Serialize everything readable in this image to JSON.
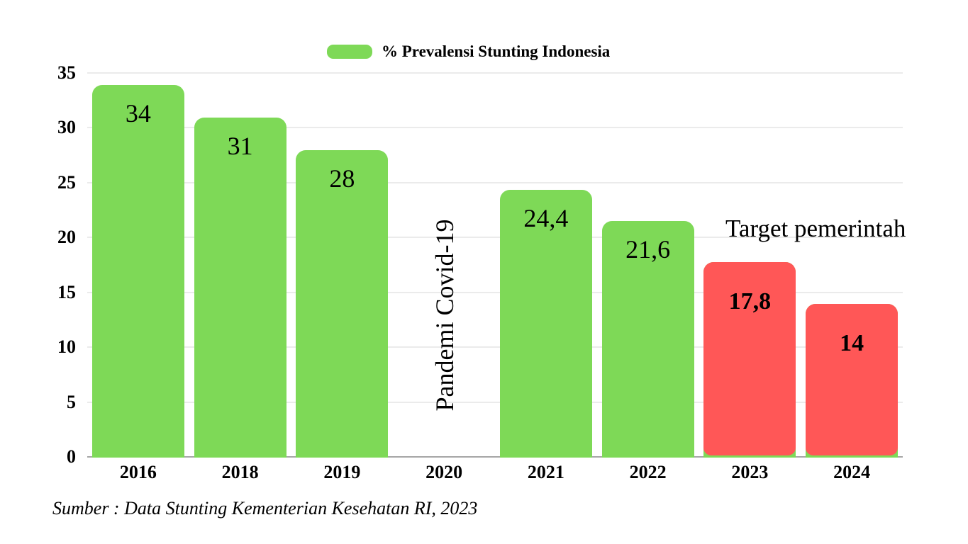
{
  "legend": {
    "label": "% Prevalensi Stunting Indonesia"
  },
  "annotations": {
    "covid": "Pandemi Covid-19",
    "target": "Target pemerintah"
  },
  "source": "Sumber : Data Stunting Kementerian Kesehatan RI, 2023",
  "colors": {
    "green": "#7ED957",
    "red": "#FF5757",
    "gridline": "#ebebeb",
    "axis_line": "#a6a6a6",
    "text": "#000000"
  },
  "chart_data": {
    "type": "bar",
    "title": "% Prevalensi Stunting Indonesia",
    "categories": [
      "2016",
      "2018",
      "2019",
      "2020",
      "2021",
      "2022",
      "2023",
      "2024"
    ],
    "values": [
      34,
      31,
      28,
      null,
      24.4,
      21.6,
      17.8,
      14
    ],
    "display_labels": [
      "34",
      "31",
      "28",
      "",
      "24,4",
      "21,6",
      "17,8",
      "14"
    ],
    "bar_color_names": [
      "green",
      "green",
      "green",
      null,
      "green",
      "green",
      "red",
      "red"
    ],
    "xlabel": "",
    "ylabel": "",
    "ylim": [
      0,
      35
    ],
    "yticks": [
      0,
      5,
      10,
      15,
      20,
      25,
      30,
      35
    ],
    "grid": "horizontal",
    "legend_position": "top-center",
    "annotations": [
      {
        "text": "Pandemi Covid-19",
        "category": "2020",
        "rotation": -90
      },
      {
        "text": "Target pemerintah",
        "category": "2023-2024",
        "rotation": 0
      }
    ],
    "source": "Sumber : Data Stunting Kementerian Kesehatan RI, 2023"
  }
}
